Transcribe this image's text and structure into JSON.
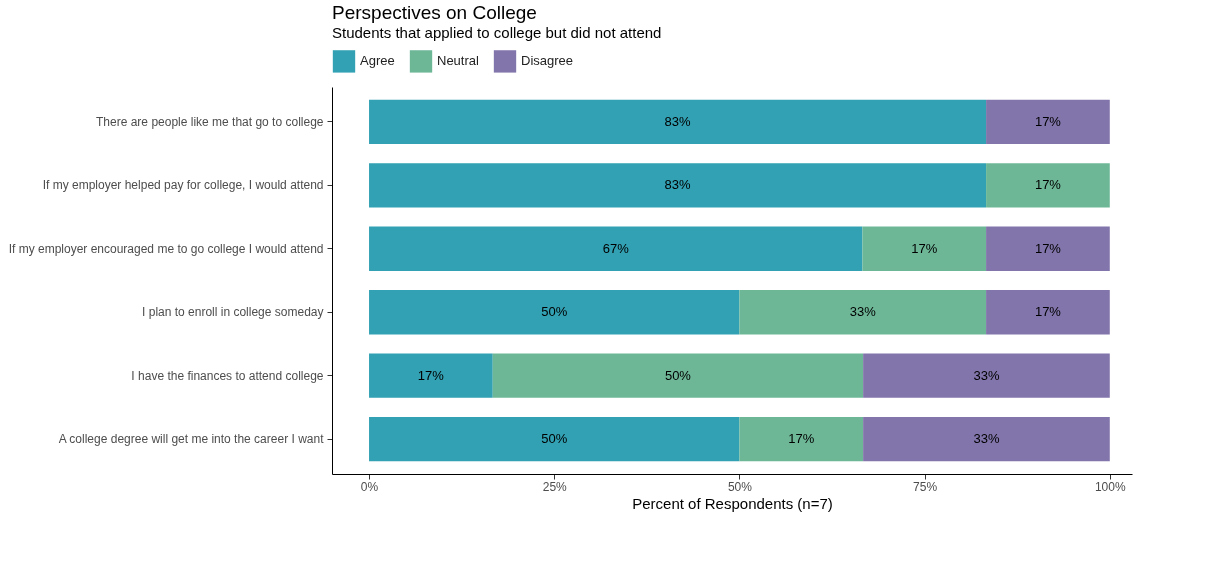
{
  "chart_data": {
    "type": "bar",
    "orientation": "horizontal",
    "stacked": true,
    "title": "Perspectives on College",
    "subtitle": "Students that applied to college but did not attend",
    "xlabel": "Percent of Respondents (n=7)",
    "categories": [
      "There are people like me that go to college",
      "If my employer helped pay for college, I would attend",
      "If my employer encouraged me to go college I would attend",
      "I plan to enroll in college someday",
      "I have the finances to attend college",
      "A college degree will get me into the career I want"
    ],
    "series": [
      {
        "name": "Agree",
        "color": "#31a1b3",
        "values": [
          83.3,
          83.3,
          66.6,
          50,
          16.7,
          50
        ],
        "value_labels": [
          "83%",
          "83%",
          "67%",
          "50%",
          "17%",
          "50%"
        ]
      },
      {
        "name": "Neutral",
        "color": "#6db797",
        "values": [
          null,
          16.7,
          16.7,
          33.3,
          50,
          16.7
        ],
        "value_labels": [
          null,
          "17%",
          "17%",
          "33%",
          "50%",
          "17%"
        ]
      },
      {
        "name": "Disagree",
        "color": "#8275ab",
        "values": [
          16.7,
          null,
          16.7,
          16.7,
          33.3,
          33.3
        ],
        "value_labels": [
          "17%",
          null,
          "17%",
          "17%",
          "33%",
          "33%"
        ]
      }
    ],
    "xlim": [
      -5,
      103
    ],
    "xticks": [
      {
        "value": 0,
        "label": "0%"
      },
      {
        "value": 25,
        "label": "25%"
      },
      {
        "value": 50,
        "label": "50%"
      },
      {
        "value": 75,
        "label": "75%"
      },
      {
        "value": 100,
        "label": "100%"
      }
    ],
    "grid": false,
    "legend": "top"
  }
}
